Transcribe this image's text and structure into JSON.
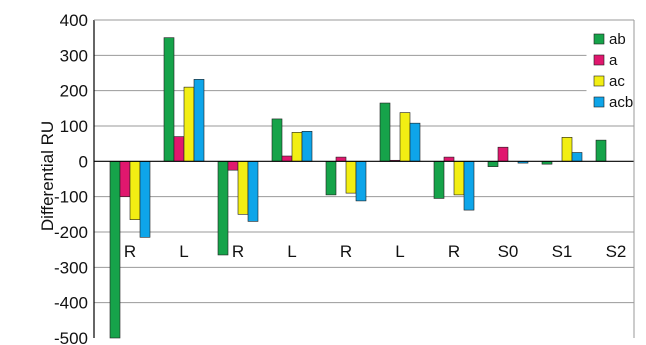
{
  "chart_data": {
    "type": "bar",
    "title": "",
    "xlabel": "",
    "ylabel": "Differential RU",
    "ylim": [
      -500,
      400
    ],
    "yticks": [
      400,
      300,
      200,
      100,
      0,
      -100,
      -200,
      -300,
      -400,
      -500
    ],
    "grid": true,
    "legend_position": "top-right",
    "categories": [
      "R",
      "L",
      "R",
      "L",
      "R",
      "L",
      "R",
      "S0",
      "S1",
      "S2"
    ],
    "series": [
      {
        "name": "ab",
        "color": "#16a34a",
        "values": [
          -500,
          350,
          -265,
          120,
          -95,
          165,
          -105,
          -15,
          -8,
          60
        ]
      },
      {
        "name": "a",
        "color": "#e0176e",
        "values": [
          -100,
          70,
          -25,
          15,
          12,
          3,
          12,
          40,
          0,
          0
        ]
      },
      {
        "name": "ac",
        "color": "#f2ee13",
        "values": [
          -165,
          210,
          -150,
          82,
          -90,
          138,
          -95,
          0,
          68,
          0
        ]
      },
      {
        "name": "acb",
        "color": "#0ea5e9",
        "values": [
          -215,
          232,
          -170,
          85,
          -112,
          108,
          -138,
          -5,
          25,
          0
        ]
      }
    ]
  }
}
